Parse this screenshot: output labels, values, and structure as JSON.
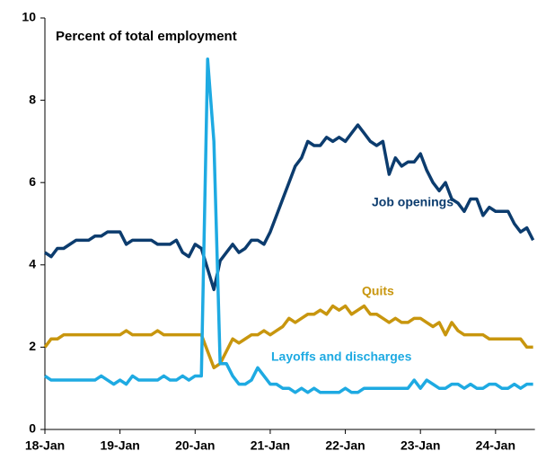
{
  "chart_data": {
    "type": "line",
    "subtitle": "Percent of total employment",
    "categories": [
      "18-Jan",
      null,
      null,
      null,
      null,
      null,
      null,
      null,
      null,
      null,
      null,
      null,
      "19-Jan",
      null,
      null,
      null,
      null,
      null,
      null,
      null,
      null,
      null,
      null,
      null,
      "20-Jan",
      null,
      null,
      null,
      null,
      null,
      null,
      null,
      null,
      null,
      null,
      null,
      "21-Jan",
      null,
      null,
      null,
      null,
      null,
      null,
      null,
      null,
      null,
      null,
      null,
      "22-Jan",
      null,
      null,
      null,
      null,
      null,
      null,
      null,
      null,
      null,
      null,
      null,
      "23-Jan",
      null,
      null,
      null,
      null,
      null,
      null,
      null,
      null,
      null,
      null,
      null,
      "24-Jan",
      null,
      null,
      null,
      null,
      null,
      null
    ],
    "series": [
      {
        "name": "Job openings",
        "color": "#0c3c6e",
        "values": [
          4.3,
          4.2,
          4.4,
          4.4,
          4.5,
          4.6,
          4.6,
          4.6,
          4.7,
          4.7,
          4.8,
          4.8,
          4.8,
          4.5,
          4.6,
          4.6,
          4.6,
          4.6,
          4.5,
          4.5,
          4.5,
          4.6,
          4.3,
          4.2,
          4.5,
          4.4,
          3.9,
          3.4,
          4.1,
          4.3,
          4.5,
          4.3,
          4.4,
          4.6,
          4.6,
          4.5,
          4.8,
          5.2,
          5.6,
          6.0,
          6.4,
          6.6,
          7.0,
          6.9,
          6.9,
          7.1,
          7.0,
          7.1,
          7.0,
          7.2,
          7.4,
          7.2,
          7.0,
          6.9,
          7.0,
          6.2,
          6.6,
          6.4,
          6.5,
          6.5,
          6.7,
          6.3,
          6.0,
          5.8,
          6.0,
          5.6,
          5.5,
          5.3,
          5.6,
          5.6,
          5.2,
          5.4,
          5.3,
          5.3,
          5.3,
          5.0,
          4.8,
          4.9,
          4.6
        ]
      },
      {
        "name": "Quits",
        "color": "#c8960e",
        "values": [
          2.0,
          2.2,
          2.2,
          2.3,
          2.3,
          2.3,
          2.3,
          2.3,
          2.3,
          2.3,
          2.3,
          2.3,
          2.3,
          2.4,
          2.3,
          2.3,
          2.3,
          2.3,
          2.4,
          2.3,
          2.3,
          2.3,
          2.3,
          2.3,
          2.3,
          2.3,
          1.9,
          1.5,
          1.6,
          1.9,
          2.2,
          2.1,
          2.2,
          2.3,
          2.3,
          2.4,
          2.3,
          2.4,
          2.5,
          2.7,
          2.6,
          2.7,
          2.8,
          2.8,
          2.9,
          2.8,
          3.0,
          2.9,
          3.0,
          2.8,
          2.9,
          3.0,
          2.8,
          2.8,
          2.7,
          2.6,
          2.7,
          2.6,
          2.6,
          2.7,
          2.7,
          2.6,
          2.5,
          2.6,
          2.3,
          2.6,
          2.4,
          2.3,
          2.3,
          2.3,
          2.3,
          2.2,
          2.2,
          2.2,
          2.2,
          2.2,
          2.2,
          2.0,
          2.0
        ]
      },
      {
        "name": "Layoffs and discharges",
        "color": "#1eaae2",
        "values": [
          1.3,
          1.2,
          1.2,
          1.2,
          1.2,
          1.2,
          1.2,
          1.2,
          1.2,
          1.3,
          1.2,
          1.1,
          1.2,
          1.1,
          1.3,
          1.2,
          1.2,
          1.2,
          1.2,
          1.3,
          1.2,
          1.2,
          1.3,
          1.2,
          1.3,
          1.3,
          9.0,
          7.0,
          1.6,
          1.6,
          1.3,
          1.1,
          1.1,
          1.2,
          1.5,
          1.3,
          1.1,
          1.1,
          1.0,
          1.0,
          0.9,
          1.0,
          0.9,
          1.0,
          0.9,
          0.9,
          0.9,
          0.9,
          1.0,
          0.9,
          0.9,
          1.0,
          1.0,
          1.0,
          1.0,
          1.0,
          1.0,
          1.0,
          1.0,
          1.2,
          1.0,
          1.2,
          1.1,
          1.0,
          1.0,
          1.1,
          1.1,
          1.0,
          1.1,
          1.0,
          1.0,
          1.1,
          1.1,
          1.0,
          1.0,
          1.1,
          1.0,
          1.1,
          1.1
        ]
      }
    ],
    "ylim": [
      0,
      10
    ],
    "yticks": [
      0,
      2,
      4,
      6,
      8,
      10
    ],
    "grid": false
  }
}
